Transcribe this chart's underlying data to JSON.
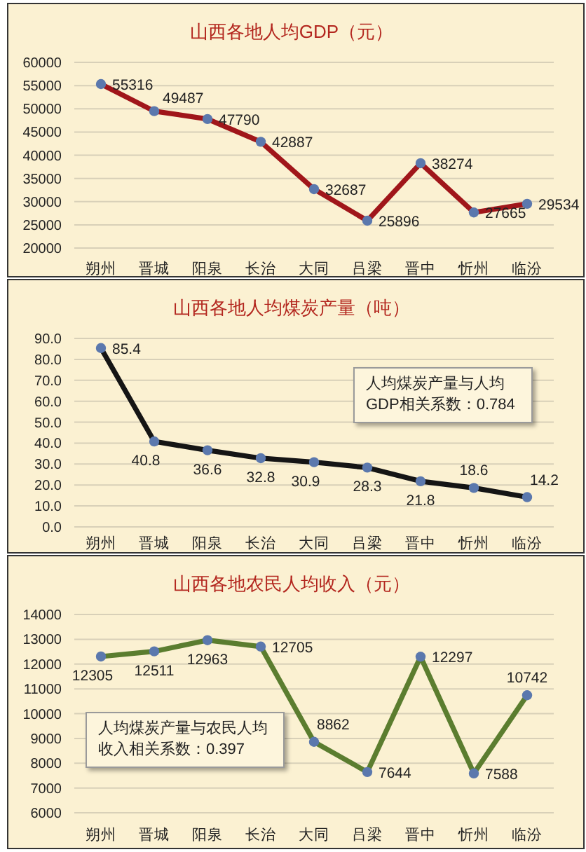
{
  "chart_data": [
    {
      "type": "line",
      "title": "山西各地人均GDP（元）",
      "categories": [
        "朔州",
        "晋城",
        "阳泉",
        "长治",
        "大同",
        "吕梁",
        "晋中",
        "忻州",
        "临汾"
      ],
      "series": [
        {
          "color": "#a0161a",
          "values": [
            55316,
            49487,
            47790,
            42887,
            32687,
            25896,
            38274,
            27665,
            29534
          ]
        }
      ],
      "ylim": [
        20000,
        60000
      ],
      "yticks": [
        20000,
        25000,
        30000,
        35000,
        40000,
        45000,
        50000,
        55000,
        60000
      ],
      "grid": "y",
      "marker": "circle",
      "data_labels": true
    },
    {
      "type": "line",
      "title": "山西各地人均煤炭产量（吨）",
      "categories": [
        "朔州",
        "晋城",
        "阳泉",
        "长治",
        "大同",
        "吕梁",
        "晋中",
        "忻州",
        "临汾"
      ],
      "series": [
        {
          "color": "#151515",
          "values": [
            85.4,
            40.8,
            36.6,
            32.8,
            30.9,
            28.3,
            21.8,
            18.6,
            14.2
          ]
        }
      ],
      "ylim": [
        0,
        90
      ],
      "yticks": [
        {
          "value": 0,
          "label": "0.0"
        },
        {
          "value": 10,
          "label": "10.0"
        },
        {
          "value": 20,
          "label": "20.0"
        },
        {
          "value": 30,
          "label": "30.0"
        },
        {
          "value": 40,
          "label": "40.0"
        },
        {
          "value": 50,
          "label": "50.0"
        },
        {
          "value": 60,
          "label": "60.0"
        },
        {
          "value": 70,
          "label": "70.0"
        },
        {
          "value": 80,
          "label": "80.0"
        },
        {
          "value": 90,
          "label": "90.0"
        }
      ],
      "grid": "y",
      "marker": "circle",
      "data_labels": true,
      "annotations": [
        "人均煤炭产量与人均GDP相关系数：0.784"
      ]
    },
    {
      "type": "line",
      "title": "山西各地农民人均收入（元）",
      "categories": [
        "朔州",
        "晋城",
        "阳泉",
        "长治",
        "大同",
        "吕梁",
        "晋中",
        "忻州",
        "临汾"
      ],
      "series": [
        {
          "color": "#5b7d2f",
          "values": [
            12305,
            12511,
            12963,
            12705,
            8862,
            7644,
            12297,
            7588,
            10742
          ]
        }
      ],
      "ylim": [
        6000,
        14000
      ],
      "yticks": [
        6000,
        7000,
        8000,
        9000,
        10000,
        11000,
        12000,
        13000,
        14000
      ],
      "grid": "y",
      "marker": "circle",
      "data_labels": true,
      "annotations": [
        "人均煤炭产量与农民人均收入相关系数：0.397"
      ]
    }
  ]
}
